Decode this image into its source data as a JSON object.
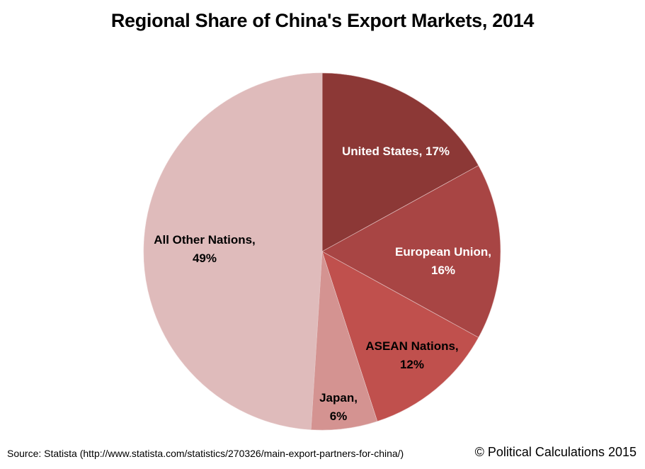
{
  "chart_data": {
    "type": "pie",
    "title": "Regional Share of China's Export Markets, 2014",
    "start_angle": "12 o'clock, clockwise",
    "slices": [
      {
        "name": "United States",
        "value": 17,
        "label": "United States, 17%",
        "color": "#8C3836",
        "text_color": "#FFFFFF"
      },
      {
        "name": "European Union",
        "value": 16,
        "label": "European Union,\n16%",
        "color": "#A84544",
        "text_color": "#FFFFFF"
      },
      {
        "name": "ASEAN Nations",
        "value": 12,
        "label": "ASEAN Nations,\n12%",
        "color": "#C0504D",
        "text_color": "#000000"
      },
      {
        "name": "Japan",
        "value": 6,
        "label": "Japan,\n6%",
        "color": "#D49391",
        "text_color": "#000000"
      },
      {
        "name": "All Other Nations",
        "value": 49,
        "label": "All Other Nations,\n49%",
        "color": "#DFBBBB",
        "text_color": "#000000"
      }
    ]
  },
  "footer": {
    "source": "Source: Statista (http://www.statista.com/statistics/270326/main-export-partners-for-china/)",
    "copyright": "© Political Calculations 2015"
  }
}
